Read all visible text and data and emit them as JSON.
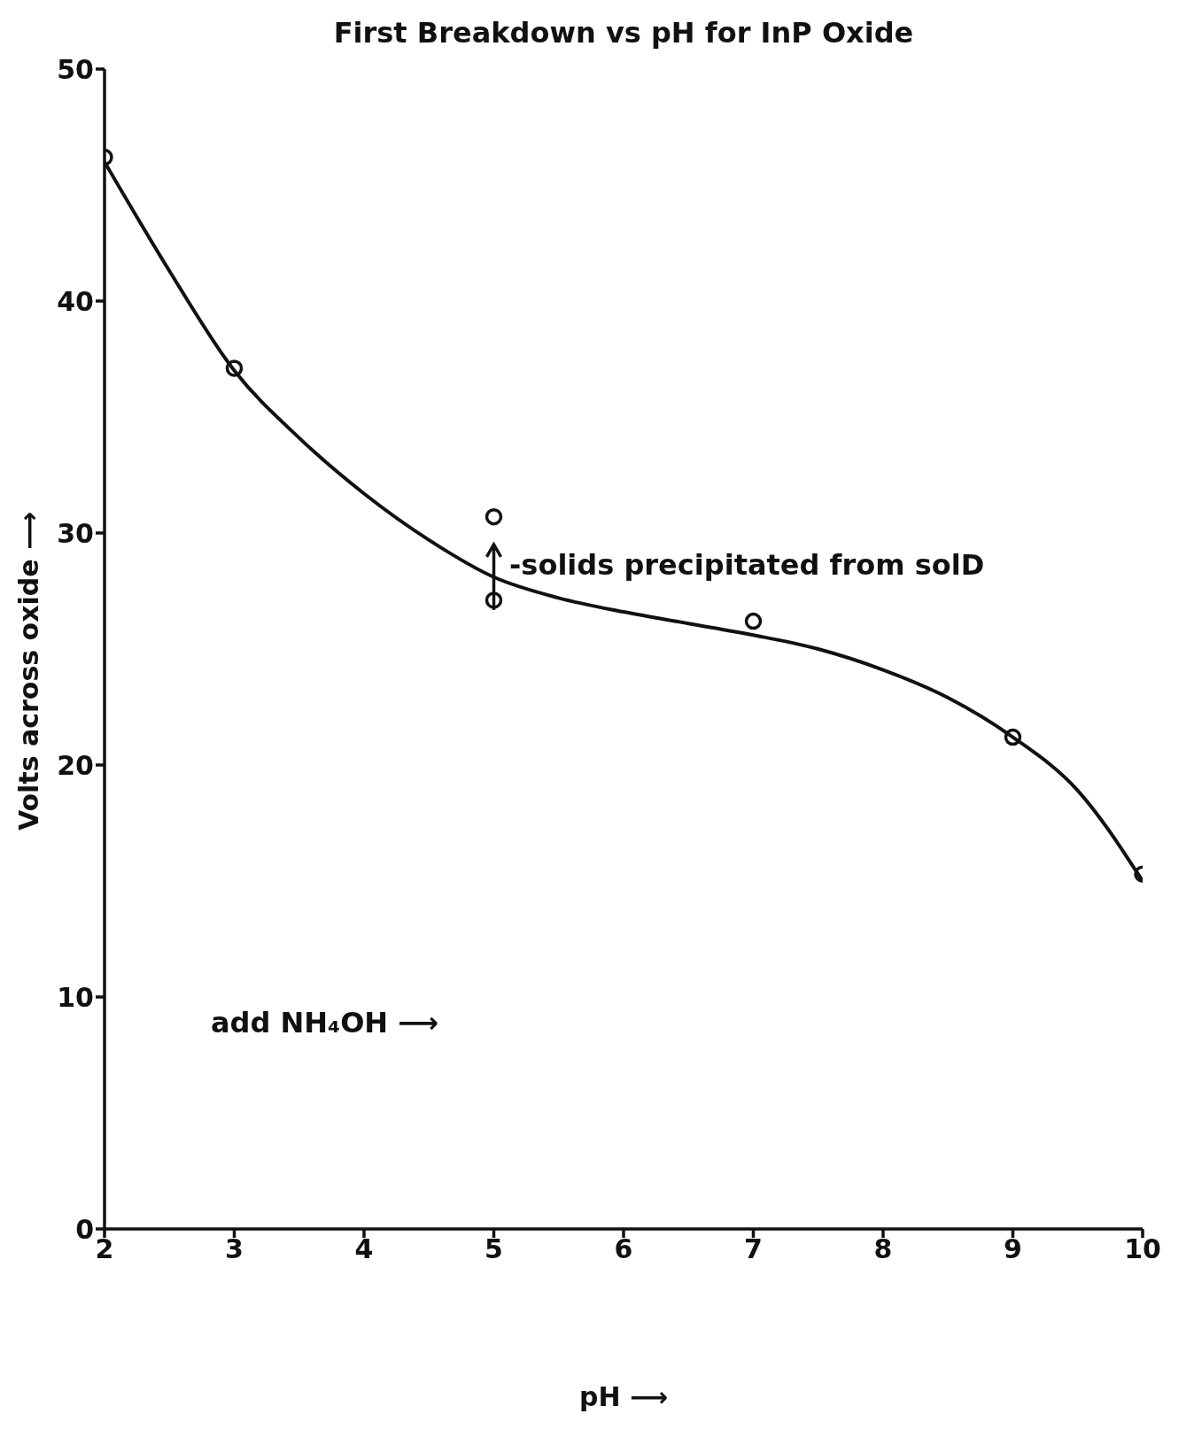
{
  "chart_data": {
    "type": "scatter",
    "title": "First Breakdown vs pH for InP Oxide",
    "xlabel": "pH ⟶",
    "ylabel": "Volts across oxide ⟶",
    "xlim": [
      2,
      10
    ],
    "xticks": [
      2,
      3,
      4,
      5,
      6,
      7,
      8,
      9,
      10
    ],
    "ylim": [
      0,
      50
    ],
    "yticks": [
      0,
      10,
      20,
      30,
      40,
      50
    ],
    "grid": false,
    "legend": false,
    "marker": "circle",
    "series": [
      {
        "color": "#111111",
        "x": [
          2,
          3,
          5,
          5,
          7,
          9,
          10
        ],
        "values": [
          46.2,
          37.1,
          30.7,
          27.1,
          26.2,
          21.2,
          15.3
        ]
      },
      {
        "type": "line",
        "color": "#111111",
        "marker": "none",
        "line_style": "solid",
        "x": [
          2,
          2.5,
          3,
          3.5,
          4,
          4.5,
          5,
          5.5,
          6,
          6.5,
          7,
          7.5,
          8,
          8.5,
          9,
          9.5,
          10
        ],
        "values": [
          46,
          41.3,
          37,
          34.1,
          31.7,
          29.7,
          28.1,
          27.2,
          26.6,
          26.1,
          25.6,
          25,
          24.1,
          22.9,
          21.2,
          18.9,
          15
        ]
      }
    ],
    "annotations": [
      "-solids precipitated from solD",
      "add NH₄OH ⟶"
    ]
  }
}
